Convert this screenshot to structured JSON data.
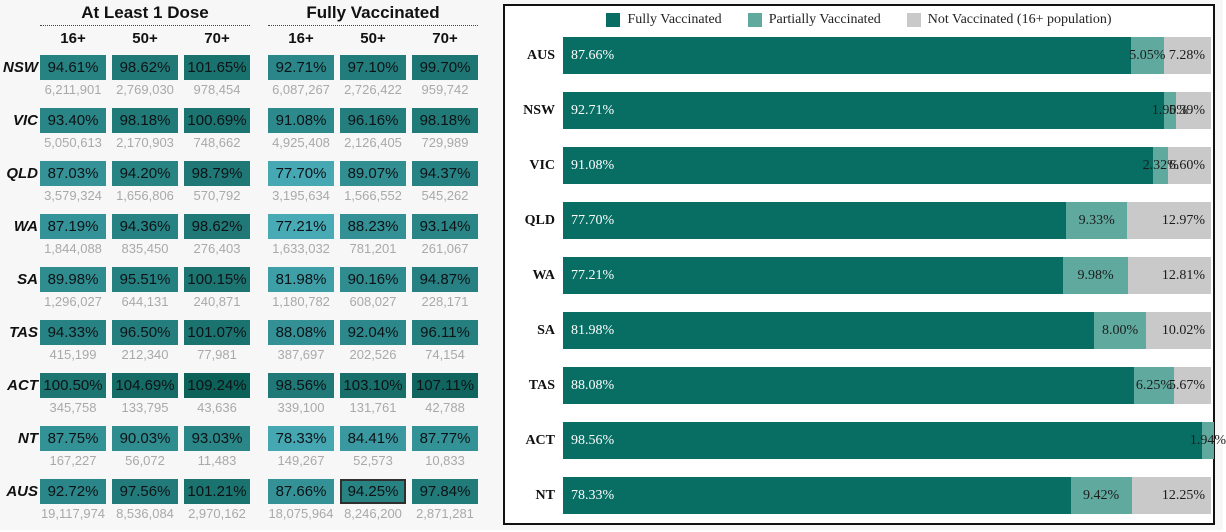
{
  "page_bg": "#f7f7f7",
  "table": {
    "groups": [
      {
        "title": "At Least 1 Dose",
        "columns": [
          "16+",
          "50+",
          "70+"
        ]
      },
      {
        "title": "Fully Vaccinated",
        "columns": [
          "16+",
          "50+",
          "70+"
        ]
      }
    ],
    "color_scale": {
      "low_pct": 77,
      "high_pct": 110,
      "low_color": "#47aab5",
      "high_color": "#0b5f56"
    },
    "count_color": "#a9a9a9",
    "rows": [
      {
        "label": "NSW",
        "at_least_1_dose": [
          {
            "pct": "94.61%",
            "count": "6,211,901"
          },
          {
            "pct": "98.62%",
            "count": "2,769,030"
          },
          {
            "pct": "101.65%",
            "count": "978,454"
          }
        ],
        "fully_vaccinated": [
          {
            "pct": "92.71%",
            "count": "6,087,267"
          },
          {
            "pct": "97.10%",
            "count": "2,726,422"
          },
          {
            "pct": "99.70%",
            "count": "959,742"
          }
        ]
      },
      {
        "label": "VIC",
        "at_least_1_dose": [
          {
            "pct": "93.40%",
            "count": "5,050,613"
          },
          {
            "pct": "98.18%",
            "count": "2,170,903"
          },
          {
            "pct": "100.69%",
            "count": "748,662"
          }
        ],
        "fully_vaccinated": [
          {
            "pct": "91.08%",
            "count": "4,925,408"
          },
          {
            "pct": "96.16%",
            "count": "2,126,405"
          },
          {
            "pct": "98.18%",
            "count": "729,989"
          }
        ]
      },
      {
        "label": "QLD",
        "at_least_1_dose": [
          {
            "pct": "87.03%",
            "count": "3,579,324"
          },
          {
            "pct": "94.20%",
            "count": "1,656,806"
          },
          {
            "pct": "98.79%",
            "count": "570,792"
          }
        ],
        "fully_vaccinated": [
          {
            "pct": "77.70%",
            "count": "3,195,634"
          },
          {
            "pct": "89.07%",
            "count": "1,566,552"
          },
          {
            "pct": "94.37%",
            "count": "545,262"
          }
        ]
      },
      {
        "label": "WA",
        "at_least_1_dose": [
          {
            "pct": "87.19%",
            "count": "1,844,088"
          },
          {
            "pct": "94.36%",
            "count": "835,450"
          },
          {
            "pct": "98.62%",
            "count": "276,403"
          }
        ],
        "fully_vaccinated": [
          {
            "pct": "77.21%",
            "count": "1,633,032"
          },
          {
            "pct": "88.23%",
            "count": "781,201"
          },
          {
            "pct": "93.14%",
            "count": "261,067"
          }
        ]
      },
      {
        "label": "SA",
        "at_least_1_dose": [
          {
            "pct": "89.98%",
            "count": "1,296,027"
          },
          {
            "pct": "95.51%",
            "count": "644,131"
          },
          {
            "pct": "100.15%",
            "count": "240,871"
          }
        ],
        "fully_vaccinated": [
          {
            "pct": "81.98%",
            "count": "1,180,782"
          },
          {
            "pct": "90.16%",
            "count": "608,027"
          },
          {
            "pct": "94.87%",
            "count": "228,171"
          }
        ]
      },
      {
        "label": "TAS",
        "at_least_1_dose": [
          {
            "pct": "94.33%",
            "count": "415,199"
          },
          {
            "pct": "96.50%",
            "count": "212,340"
          },
          {
            "pct": "101.07%",
            "count": "77,981"
          }
        ],
        "fully_vaccinated": [
          {
            "pct": "88.08%",
            "count": "387,697"
          },
          {
            "pct": "92.04%",
            "count": "202,526"
          },
          {
            "pct": "96.11%",
            "count": "74,154"
          }
        ]
      },
      {
        "label": "ACT",
        "at_least_1_dose": [
          {
            "pct": "100.50%",
            "count": "345,758"
          },
          {
            "pct": "104.69%",
            "count": "133,795"
          },
          {
            "pct": "109.24%",
            "count": "43,636"
          }
        ],
        "fully_vaccinated": [
          {
            "pct": "98.56%",
            "count": "339,100"
          },
          {
            "pct": "103.10%",
            "count": "131,761"
          },
          {
            "pct": "107.11%",
            "count": "42,788"
          }
        ]
      },
      {
        "label": "NT",
        "at_least_1_dose": [
          {
            "pct": "87.75%",
            "count": "167,227"
          },
          {
            "pct": "90.03%",
            "count": "56,072"
          },
          {
            "pct": "93.03%",
            "count": "11,483"
          }
        ],
        "fully_vaccinated": [
          {
            "pct": "78.33%",
            "count": "149,267"
          },
          {
            "pct": "84.41%",
            "count": "52,573"
          },
          {
            "pct": "87.77%",
            "count": "10,833"
          }
        ]
      },
      {
        "label": "AUS",
        "at_least_1_dose": [
          {
            "pct": "92.72%",
            "count": "19,117,974"
          },
          {
            "pct": "97.56%",
            "count": "8,536,084"
          },
          {
            "pct": "101.21%",
            "count": "2,970,162"
          }
        ],
        "fully_vaccinated": [
          {
            "pct": "87.66%",
            "count": "18,075,964"
          },
          {
            "pct": "94.25%",
            "count": "8,246,200",
            "selected": true
          },
          {
            "pct": "97.84%",
            "count": "2,871,281"
          }
        ]
      }
    ]
  },
  "chart_data": {
    "type": "bar",
    "orientation": "horizontal-stacked",
    "title": "",
    "legend": [
      "Fully Vaccinated",
      "Partially Vaccinated",
      "Not Vaccinated (16+ population)"
    ],
    "legend_position": "top-center",
    "colors": {
      "fully": "#086e64",
      "partial": "#5fa99e",
      "none": "#c9c9c9"
    },
    "categories": [
      "AUS",
      "NSW",
      "VIC",
      "QLD",
      "WA",
      "SA",
      "TAS",
      "ACT",
      "NT"
    ],
    "series": [
      {
        "name": "Fully Vaccinated",
        "values": [
          87.66,
          92.71,
          91.08,
          77.7,
          77.21,
          81.98,
          88.08,
          98.56,
          78.33
        ]
      },
      {
        "name": "Partially Vaccinated",
        "values": [
          5.05,
          1.9,
          2.32,
          9.33,
          9.98,
          8.0,
          6.25,
          1.94,
          9.42
        ]
      },
      {
        "name": "Not Vaccinated (16+ population)",
        "values": [
          7.28,
          5.39,
          6.6,
          12.97,
          12.81,
          10.02,
          5.67,
          0,
          12.25
        ]
      }
    ],
    "xlim": [
      0,
      100
    ],
    "grid": false
  }
}
